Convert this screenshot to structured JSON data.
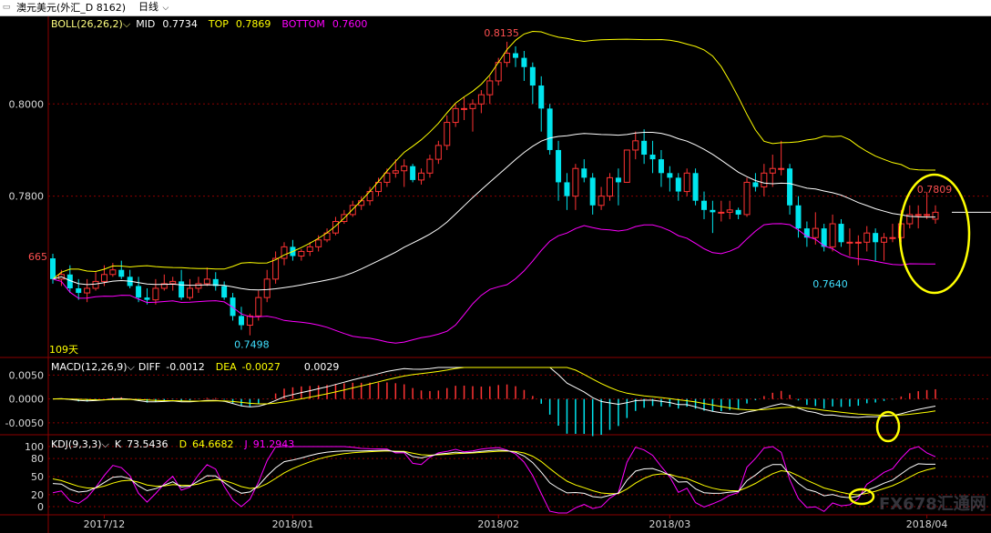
{
  "window": {
    "title": "澳元美元(外汇_D 8162)",
    "period": "日线"
  },
  "chart_data": {
    "type": "candlestick",
    "instrument": "澳元美元",
    "dates": [
      "2017-11-22",
      "2017-11-23",
      "2017-11-24",
      "2017-11-27",
      "2017-11-28",
      "2017-11-29",
      "2017-11-30",
      "2017-12-01",
      "2017-12-04",
      "2017-12-05",
      "2017-12-06",
      "2017-12-07",
      "2017-12-08",
      "2017-12-11",
      "2017-12-12",
      "2017-12-13",
      "2017-12-14",
      "2017-12-15",
      "2017-12-18",
      "2017-12-19",
      "2017-12-20",
      "2017-12-21",
      "2017-12-22",
      "2017-12-25",
      "2017-12-26",
      "2017-12-27",
      "2017-12-28",
      "2017-12-29",
      "2018-01-01",
      "2018-01-02",
      "2018-01-03",
      "2018-01-04",
      "2018-01-05",
      "2018-01-08",
      "2018-01-09",
      "2018-01-10",
      "2018-01-11",
      "2018-01-12",
      "2018-01-15",
      "2018-01-16",
      "2018-01-17",
      "2018-01-18",
      "2018-01-19",
      "2018-01-22",
      "2018-01-23",
      "2018-01-24",
      "2018-01-25",
      "2018-01-26",
      "2018-01-29",
      "2018-01-30",
      "2018-01-31",
      "2018-02-01",
      "2018-02-02",
      "2018-02-05",
      "2018-02-06",
      "2018-02-07",
      "2018-02-08",
      "2018-02-09",
      "2018-02-12",
      "2018-02-13",
      "2018-02-14",
      "2018-02-15",
      "2018-02-16",
      "2018-02-19",
      "2018-02-20",
      "2018-02-21",
      "2018-02-22",
      "2018-02-23",
      "2018-02-26",
      "2018-02-27",
      "2018-02-28",
      "2018-03-01",
      "2018-03-02",
      "2018-03-05",
      "2018-03-06",
      "2018-03-07",
      "2018-03-08",
      "2018-03-09",
      "2018-03-12",
      "2018-03-13",
      "2018-03-14",
      "2018-03-15",
      "2018-03-16",
      "2018-03-19",
      "2018-03-20",
      "2018-03-21",
      "2018-03-22",
      "2018-03-23",
      "2018-03-26",
      "2018-03-27",
      "2018-03-28",
      "2018-03-29",
      "2018-03-30",
      "2018-04-02",
      "2018-04-03",
      "2018-04-04",
      "2018-04-05",
      "2018-04-06",
      "2018-04-09",
      "2018-04-10",
      "2018-04-11",
      "2018-04-12",
      "2018-04-13",
      "2018-04-16"
    ],
    "open": [
      0.7665,
      0.762,
      0.763,
      0.76,
      0.759,
      0.76,
      0.7615,
      0.763,
      0.764,
      0.7625,
      0.7605,
      0.758,
      0.7575,
      0.76,
      0.761,
      0.7615,
      0.758,
      0.76,
      0.761,
      0.762,
      0.7605,
      0.758,
      0.754,
      0.752,
      0.754,
      0.758,
      0.762,
      0.7665,
      0.769,
      0.767,
      0.768,
      0.769,
      0.7705,
      0.772,
      0.7745,
      0.776,
      0.778,
      0.779,
      0.781,
      0.783,
      0.785,
      0.7855,
      0.7865,
      0.7835,
      0.785,
      0.788,
      0.791,
      0.796,
      0.799,
      0.799,
      0.8,
      0.802,
      0.805,
      0.809,
      0.811,
      0.81,
      0.808,
      0.804,
      0.799,
      0.79,
      0.783,
      0.78,
      0.786,
      0.784,
      0.778,
      0.78,
      0.784,
      0.783,
      0.79,
      0.792,
      0.789,
      0.788,
      0.785,
      0.784,
      0.781,
      0.785,
      0.779,
      0.777,
      0.7765,
      0.7765,
      0.777,
      0.776,
      0.783,
      0.782,
      0.785,
      0.786,
      0.786,
      0.778,
      0.773,
      0.771,
      0.773,
      0.769,
      0.774,
      0.77,
      0.77,
      0.77,
      0.772,
      0.77,
      0.771,
      0.771,
      0.774,
      0.776,
      0.776,
      0.775
    ],
    "high": [
      0.7675,
      0.764,
      0.765,
      0.762,
      0.762,
      0.7635,
      0.765,
      0.7655,
      0.766,
      0.764,
      0.7625,
      0.76,
      0.762,
      0.763,
      0.7625,
      0.764,
      0.762,
      0.7625,
      0.7645,
      0.7635,
      0.7615,
      0.759,
      0.756,
      0.7545,
      0.7595,
      0.764,
      0.768,
      0.77,
      0.7705,
      0.7685,
      0.77,
      0.7715,
      0.773,
      0.7755,
      0.777,
      0.779,
      0.78,
      0.782,
      0.784,
      0.786,
      0.788,
      0.788,
      0.787,
      0.786,
      0.789,
      0.792,
      0.7975,
      0.8,
      0.8015,
      0.801,
      0.803,
      0.806,
      0.81,
      0.8135,
      0.8125,
      0.8115,
      0.809,
      0.806,
      0.8,
      0.792,
      0.785,
      0.787,
      0.788,
      0.785,
      0.782,
      0.785,
      0.786,
      0.79,
      0.794,
      0.7945,
      0.792,
      0.79,
      0.7865,
      0.785,
      0.786,
      0.786,
      0.781,
      0.779,
      0.779,
      0.779,
      0.7775,
      0.784,
      0.785,
      0.787,
      0.789,
      0.792,
      0.787,
      0.78,
      0.7745,
      0.7765,
      0.774,
      0.776,
      0.775,
      0.773,
      0.7715,
      0.7735,
      0.773,
      0.772,
      0.774,
      0.777,
      0.778,
      0.778,
      0.7809,
      0.778
    ],
    "low": [
      0.761,
      0.7605,
      0.759,
      0.7575,
      0.757,
      0.7595,
      0.7605,
      0.7625,
      0.762,
      0.76,
      0.757,
      0.7565,
      0.7565,
      0.7595,
      0.7595,
      0.7575,
      0.7575,
      0.759,
      0.7605,
      0.7595,
      0.7575,
      0.753,
      0.751,
      0.7498,
      0.753,
      0.757,
      0.761,
      0.765,
      0.766,
      0.766,
      0.767,
      0.768,
      0.77,
      0.7715,
      0.774,
      0.7755,
      0.777,
      0.778,
      0.78,
      0.782,
      0.784,
      0.782,
      0.783,
      0.7825,
      0.784,
      0.787,
      0.79,
      0.795,
      0.7965,
      0.794,
      0.798,
      0.8,
      0.804,
      0.808,
      0.808,
      0.805,
      0.8,
      0.794,
      0.789,
      0.779,
      0.777,
      0.777,
      0.783,
      0.776,
      0.777,
      0.779,
      0.778,
      0.783,
      0.788,
      0.787,
      0.785,
      0.782,
      0.781,
      0.779,
      0.78,
      0.778,
      0.775,
      0.772,
      0.7745,
      0.775,
      0.775,
      0.7755,
      0.781,
      0.78,
      0.782,
      0.7845,
      0.776,
      0.771,
      0.769,
      0.7695,
      0.768,
      0.768,
      0.769,
      0.767,
      0.765,
      0.768,
      0.766,
      0.766,
      0.77,
      0.77,
      0.773,
      0.773,
      0.775,
      0.774
    ],
    "close": [
      0.762,
      0.763,
      0.76,
      0.759,
      0.76,
      0.7615,
      0.763,
      0.764,
      0.7625,
      0.7605,
      0.758,
      0.7575,
      0.76,
      0.761,
      0.7615,
      0.758,
      0.76,
      0.761,
      0.762,
      0.7605,
      0.758,
      0.754,
      0.752,
      0.754,
      0.758,
      0.762,
      0.7665,
      0.769,
      0.767,
      0.768,
      0.769,
      0.7705,
      0.772,
      0.7745,
      0.776,
      0.778,
      0.779,
      0.781,
      0.783,
      0.785,
      0.7855,
      0.7865,
      0.7835,
      0.785,
      0.788,
      0.791,
      0.796,
      0.799,
      0.799,
      0.8,
      0.802,
      0.805,
      0.809,
      0.811,
      0.81,
      0.808,
      0.804,
      0.799,
      0.79,
      0.783,
      0.78,
      0.786,
      0.784,
      0.778,
      0.78,
      0.784,
      0.783,
      0.79,
      0.792,
      0.789,
      0.788,
      0.785,
      0.784,
      0.781,
      0.785,
      0.779,
      0.777,
      0.7765,
      0.7765,
      0.777,
      0.776,
      0.783,
      0.782,
      0.785,
      0.786,
      0.786,
      0.778,
      0.773,
      0.771,
      0.773,
      0.769,
      0.774,
      0.77,
      0.77,
      0.77,
      0.772,
      0.77,
      0.771,
      0.771,
      0.774,
      0.776,
      0.776,
      0.776,
      0.7765
    ],
    "boll": {
      "label": "BOLL(26,26,2)",
      "mid_label": "MID",
      "mid_value": "0.7734",
      "mid_color": "#ffffff",
      "top_label": "TOP",
      "top_value": "0.7869",
      "top_color": "#ffff00",
      "bottom_label": "BOTTOM",
      "bottom_value": "0.7600",
      "bottom_color": "#ff00ff"
    },
    "price_axis": {
      "ylim": [
        0.745,
        0.819
      ],
      "ticks": [
        "0.8000",
        "0.7800"
      ],
      "left_partial_label": "665"
    },
    "annotations": {
      "high": "0.8135",
      "low": "0.7498",
      "recent_low": "0.7640",
      "recent_high": "0.7809",
      "period_count": "109天"
    },
    "macd": {
      "label": "MACD(12,26,9)",
      "diff_label": "DIFF",
      "diff_value": "-0.0012",
      "dea_label": "DEA",
      "dea_value": "-0.0027",
      "macd_value": "0.0029",
      "ylim": [
        -0.0075,
        0.0085
      ],
      "ticks": [
        "0.0050",
        "0.0000",
        "-0.0050"
      ]
    },
    "kdj": {
      "label": "KDJ(9,3,3)",
      "k_label": "K",
      "k_value": "73.5436",
      "d_label": "D",
      "d_value": "64.6682",
      "j_label": "J",
      "j_value": "91.2943",
      "ylim": [
        -12,
        118
      ],
      "ticks": [
        "100",
        "80",
        "50",
        "20",
        "0"
      ]
    },
    "x_labels": [
      {
        "text": "2017/12",
        "index": 6
      },
      {
        "text": "2018/01",
        "index": 28
      },
      {
        "text": "2018/02",
        "index": 52
      },
      {
        "text": "2018/03",
        "index": 72
      },
      {
        "text": "2018/04",
        "index": 102
      }
    ],
    "colors": {
      "up": "#ff3333",
      "down": "#00e5ee",
      "highlight": "#ffff00",
      "axis": "#8b0000"
    }
  },
  "watermark": "FX678汇通网"
}
